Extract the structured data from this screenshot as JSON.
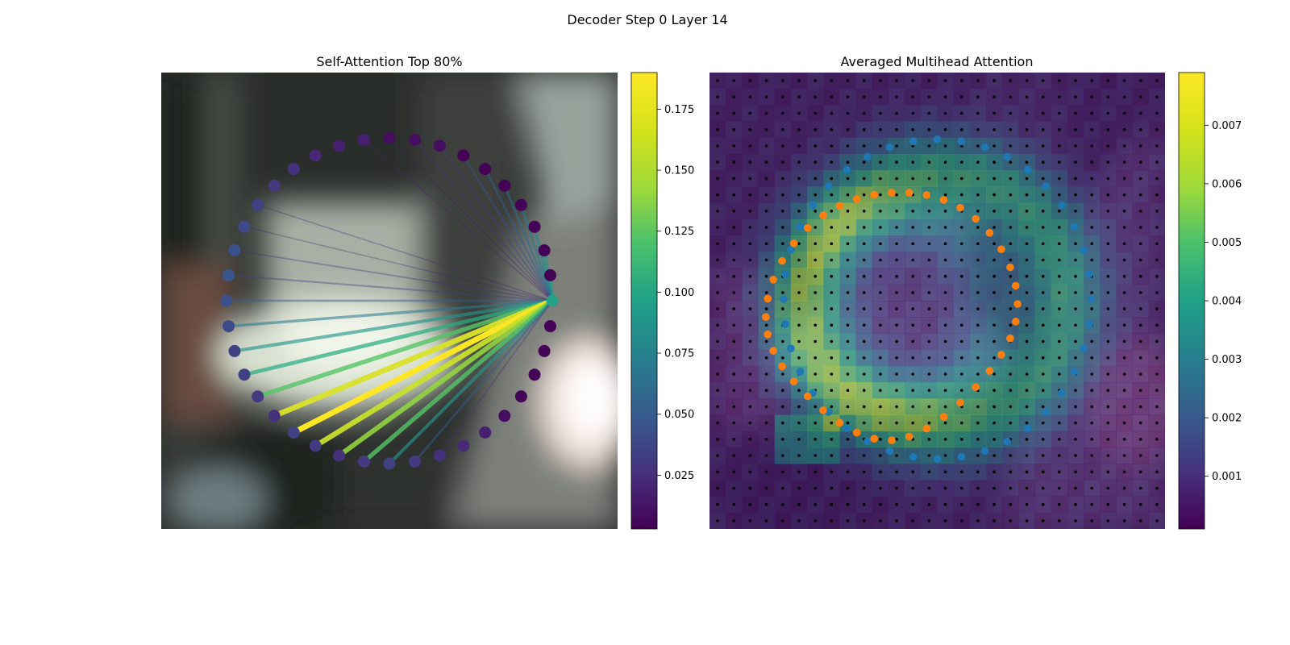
{
  "figure": {
    "suptitle": "Decoder Step 0 Layer 14"
  },
  "chart_data": [
    {
      "type": "scatter",
      "title": "Self-Attention Top 80%",
      "description_of_marks": "ring of 40 query points; lines from the highlighted point (index 0) to the points it attends to, coloured by attention weight",
      "n_points": 40,
      "source_index": 0,
      "colorbar": {
        "min": 0.003,
        "max": 0.19,
        "ticks": [
          0.025,
          0.05,
          0.075,
          0.1,
          0.125,
          0.15,
          0.175
        ],
        "tick_labels": [
          "0.025",
          "0.050",
          "0.075",
          "0.100",
          "0.125",
          "0.150",
          "0.175"
        ],
        "cmap": "viridis"
      },
      "attention_weights": [
        0.12,
        0.11,
        0.1,
        0.09,
        0.08,
        0.07,
        0.06,
        0.05,
        0.04,
        0.03,
        0.02,
        0.02,
        0.01,
        0.01,
        0.01,
        0.01,
        0.02,
        0.02,
        0.03,
        0.04,
        0.06,
        0.08,
        0.1,
        0.12,
        0.14,
        0.18,
        0.19,
        0.175,
        0.16,
        0.14,
        0.1,
        0.06,
        0.03,
        0.01,
        0.005,
        0.004,
        0.004,
        0.004,
        0.004,
        0.004
      ],
      "dot_weights": [
        0.11,
        0.004,
        0.004,
        0.004,
        0.004,
        0.004,
        0.004,
        0.004,
        0.01,
        0.01,
        0.01,
        0.02,
        0.02,
        0.025,
        0.03,
        0.035,
        0.04,
        0.045,
        0.05,
        0.055,
        0.05,
        0.045,
        0.04,
        0.04,
        0.035,
        0.03,
        0.04,
        0.035,
        0.03,
        0.035,
        0.04,
        0.035,
        0.03,
        0.025,
        0.02,
        0.01,
        0.005,
        0.005,
        0.005,
        0.004
      ]
    },
    {
      "type": "heatmap",
      "title": "Averaged Multihead Attention",
      "grid": {
        "rows": 28,
        "cols": 28
      },
      "colorbar": {
        "min": 0.0001,
        "max": 0.0079,
        "ticks": [
          0.001,
          0.002,
          0.003,
          0.004,
          0.005,
          0.006,
          0.007
        ],
        "tick_labels": [
          "0.001",
          "0.002",
          "0.003",
          "0.004",
          "0.005",
          "0.006",
          "0.007"
        ],
        "cmap": "viridis"
      },
      "series": [
        {
          "color": "#1f77b4",
          "shape": "ring",
          "n_points": 40,
          "center": [
            14,
            13.9
          ],
          "radius": 9.8
        },
        {
          "color": "#ff7f0e",
          "shape": "deformed ring",
          "n_points": 40,
          "center": [
            11.2,
            14.6
          ],
          "radius": 7.3
        }
      ]
    }
  ]
}
